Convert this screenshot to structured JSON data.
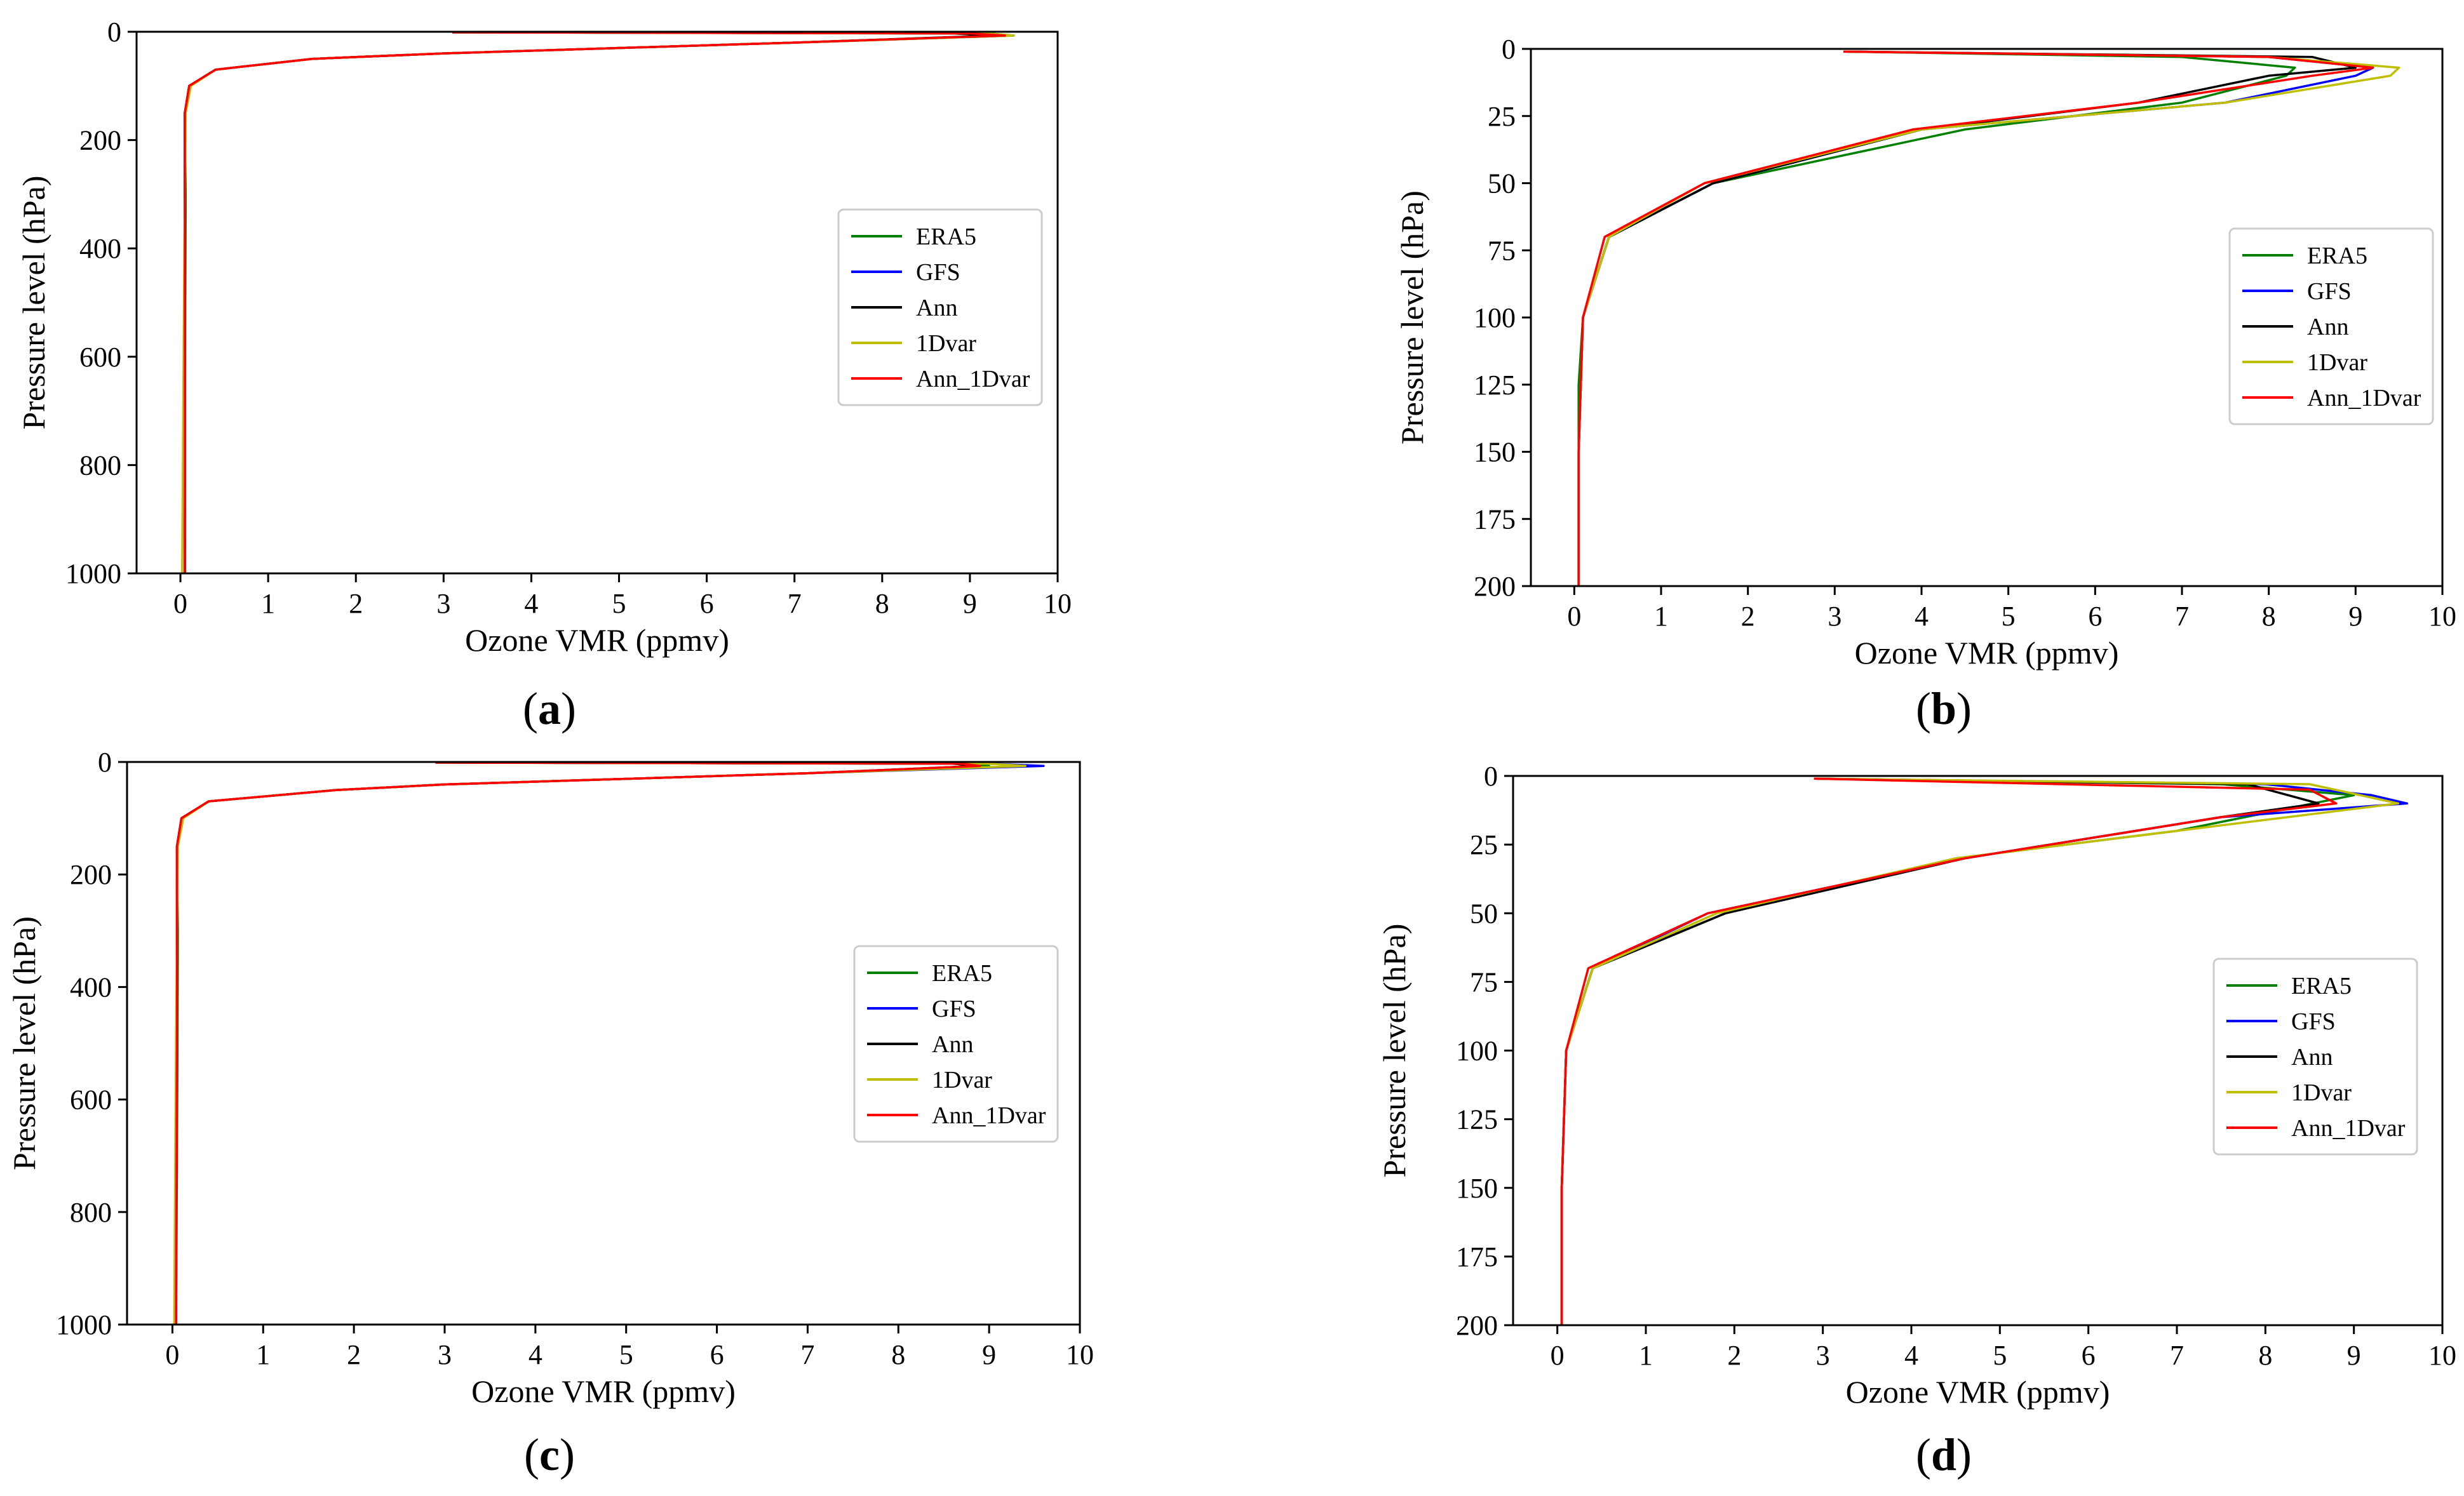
{
  "series_colors": {
    "ERA5": "#008000",
    "GFS": "#0000ff",
    "Ann": "#000000",
    "1Dvar": "#bfbf00",
    "Ann_1Dvar": "#ff0000"
  },
  "chart_data": [
    {
      "type": "line",
      "panel_label": "(a)",
      "xlabel": "Ozone VMR (ppmv)",
      "ylabel": "Pressure level (hPa)",
      "xlim": [
        -0.5,
        10
      ],
      "ylim": [
        1000,
        0
      ],
      "xticks": [
        "0",
        "1",
        "2",
        "3",
        "4",
        "5",
        "6",
        "7",
        "8",
        "9",
        "10"
      ],
      "yticks": [
        "0",
        "200",
        "400",
        "600",
        "800",
        "1000"
      ],
      "legend_position": "center-right",
      "series": [
        {
          "name": "ERA5",
          "x": [
            3.1,
            9.2,
            9.5,
            7.0,
            3.0,
            1.5,
            0.4,
            0.1,
            0.05,
            0.06,
            0.05,
            0.05
          ],
          "y": [
            1,
            3,
            7,
            20,
            40,
            50,
            70,
            100,
            150,
            300,
            700,
            1000
          ]
        },
        {
          "name": "GFS",
          "x": [
            3.1,
            9.1,
            9.4,
            7.0,
            3.0,
            1.5,
            0.4,
            0.1,
            0.05,
            0.05,
            0.05
          ],
          "y": [
            1,
            3,
            7,
            20,
            40,
            50,
            70,
            100,
            150,
            500,
            1000
          ]
        },
        {
          "name": "Ann",
          "x": [
            3.1,
            8.8,
            9.3,
            7.0,
            3.0,
            1.5,
            0.4,
            0.1,
            0.05,
            0.05,
            0.05
          ],
          "y": [
            1,
            3,
            7,
            20,
            40,
            50,
            70,
            100,
            150,
            500,
            1000
          ]
        },
        {
          "name": "1Dvar",
          "x": [
            3.1,
            9.2,
            9.5,
            7.0,
            3.0,
            1.5,
            0.4,
            0.12,
            0.06,
            0.04,
            0.02
          ],
          "y": [
            1,
            3,
            7,
            20,
            40,
            50,
            70,
            100,
            150,
            500,
            1000
          ]
        },
        {
          "name": "Ann_1Dvar",
          "x": [
            3.1,
            9.0,
            9.4,
            7.0,
            3.0,
            1.5,
            0.4,
            0.1,
            0.05,
            0.05,
            0.05
          ],
          "y": [
            1,
            3,
            7,
            20,
            40,
            50,
            70,
            100,
            150,
            500,
            1000
          ]
        }
      ]
    },
    {
      "type": "line",
      "panel_label": "(b)",
      "xlabel": "Ozone VMR (ppmv)",
      "ylabel": "Pressure level (hPa)",
      "xlim": [
        -0.5,
        10
      ],
      "ylim": [
        200,
        0
      ],
      "xticks": [
        "0",
        "1",
        "2",
        "3",
        "4",
        "5",
        "6",
        "7",
        "8",
        "9",
        "10"
      ],
      "yticks": [
        "0",
        "25",
        "50",
        "75",
        "100",
        "125",
        "150",
        "175",
        "200"
      ],
      "legend_position": "center-right",
      "series": [
        {
          "name": "ERA5",
          "x": [
            3.1,
            7.0,
            8.3,
            8.2,
            7.0,
            4.5,
            1.6,
            0.4,
            0.1,
            0.05,
            0.05,
            0.05
          ],
          "y": [
            1,
            3,
            7,
            10,
            20,
            30,
            50,
            70,
            100,
            125,
            150,
            200
          ]
        },
        {
          "name": "GFS",
          "x": [
            3.1,
            8.0,
            9.2,
            9.0,
            7.5,
            4.0,
            1.6,
            0.4,
            0.1,
            0.05,
            0.05
          ],
          "y": [
            1,
            3,
            7,
            10,
            20,
            30,
            50,
            70,
            100,
            150,
            200
          ]
        },
        {
          "name": "Ann",
          "x": [
            3.1,
            8.5,
            9.0,
            8.0,
            6.5,
            4.0,
            1.6,
            0.4,
            0.1,
            0.05,
            0.05
          ],
          "y": [
            1,
            3,
            7,
            10,
            20,
            30,
            50,
            70,
            100,
            150,
            200
          ]
        },
        {
          "name": "1Dvar",
          "x": [
            3.1,
            8.0,
            9.5,
            9.4,
            7.5,
            4.0,
            1.5,
            0.4,
            0.1,
            0.05,
            0.05
          ],
          "y": [
            1,
            3,
            7,
            10,
            20,
            30,
            50,
            70,
            100,
            150,
            200
          ]
        },
        {
          "name": "Ann_1Dvar",
          "x": [
            3.1,
            8.0,
            9.2,
            8.5,
            6.5,
            3.9,
            1.5,
            0.35,
            0.1,
            0.05,
            0.05
          ],
          "y": [
            1,
            3,
            7,
            10,
            20,
            30,
            50,
            70,
            100,
            150,
            200
          ]
        }
      ]
    },
    {
      "type": "line",
      "panel_label": "(c)",
      "xlabel": "Ozone VMR (ppmv)",
      "ylabel": "Pressure level (hPa)",
      "xlim": [
        -0.5,
        10
      ],
      "ylim": [
        1000,
        0
      ],
      "xticks": [
        "0",
        "1",
        "2",
        "3",
        "4",
        "5",
        "6",
        "7",
        "8",
        "9",
        "10"
      ],
      "yticks": [
        "0",
        "200",
        "400",
        "600",
        "800",
        "1000"
      ],
      "legend_position": "center-right",
      "series": [
        {
          "name": "ERA5",
          "x": [
            2.9,
            8.8,
            9.0,
            7.0,
            3.0,
            1.8,
            0.4,
            0.1,
            0.05,
            0.06,
            0.05,
            0.04
          ],
          "y": [
            1,
            3,
            7,
            20,
            40,
            50,
            70,
            100,
            150,
            300,
            700,
            1000
          ]
        },
        {
          "name": "GFS",
          "x": [
            2.9,
            9.0,
            9.6,
            7.0,
            3.0,
            1.8,
            0.4,
            0.1,
            0.05,
            0.05,
            0.04
          ],
          "y": [
            1,
            3,
            7,
            20,
            40,
            50,
            70,
            100,
            150,
            500,
            1000
          ]
        },
        {
          "name": "Ann",
          "x": [
            2.9,
            8.6,
            8.9,
            7.0,
            3.0,
            1.8,
            0.4,
            0.1,
            0.05,
            0.05,
            0.04
          ],
          "y": [
            1,
            3,
            7,
            20,
            40,
            50,
            70,
            100,
            150,
            500,
            1000
          ]
        },
        {
          "name": "1Dvar",
          "x": [
            2.9,
            9.0,
            9.4,
            7.0,
            3.0,
            1.8,
            0.4,
            0.12,
            0.06,
            0.04,
            0.02
          ],
          "y": [
            1,
            3,
            7,
            20,
            40,
            50,
            70,
            100,
            150,
            500,
            1000
          ]
        },
        {
          "name": "Ann_1Dvar",
          "x": [
            2.9,
            8.7,
            8.9,
            7.0,
            3.0,
            1.8,
            0.4,
            0.1,
            0.05,
            0.05,
            0.04
          ],
          "y": [
            1,
            3,
            7,
            20,
            40,
            50,
            70,
            100,
            150,
            500,
            1000
          ]
        }
      ]
    },
    {
      "type": "line",
      "panel_label": "(d)",
      "xlabel": "Ozone VMR (ppmv)",
      "ylabel": "Pressure level (hPa)",
      "xlim": [
        -0.5,
        10
      ],
      "ylim": [
        200,
        0
      ],
      "xticks": [
        "0",
        "1",
        "2",
        "3",
        "4",
        "5",
        "6",
        "7",
        "8",
        "9",
        "10"
      ],
      "yticks": [
        "0",
        "25",
        "50",
        "75",
        "100",
        "125",
        "150",
        "175",
        "200"
      ],
      "legend_position": "center-right",
      "series": [
        {
          "name": "ERA5",
          "x": [
            2.9,
            7.5,
            9.0,
            7.0,
            4.5,
            1.9,
            0.4,
            0.1,
            0.05,
            0.05
          ],
          "y": [
            1,
            3,
            7,
            20,
            30,
            50,
            70,
            100,
            150,
            200
          ]
        },
        {
          "name": "GFS",
          "x": [
            2.9,
            8.0,
            9.2,
            9.6,
            7.5,
            4.6,
            1.7,
            0.4,
            0.1,
            0.05,
            0.05
          ],
          "y": [
            1,
            3,
            7,
            10,
            15,
            30,
            50,
            70,
            100,
            150,
            200
          ]
        },
        {
          "name": "Ann",
          "x": [
            2.9,
            7.8,
            8.6,
            7.5,
            4.6,
            1.9,
            0.4,
            0.1,
            0.05,
            0.05
          ],
          "y": [
            1,
            3,
            10,
            15,
            30,
            50,
            70,
            100,
            150,
            200
          ]
        },
        {
          "name": "1Dvar",
          "x": [
            2.9,
            8.5,
            9.5,
            7.0,
            4.5,
            1.8,
            0.4,
            0.1,
            0.05,
            0.05
          ],
          "y": [
            1,
            3,
            10,
            20,
            30,
            50,
            70,
            100,
            150,
            200
          ]
        },
        {
          "name": "Ann_1Dvar",
          "x": [
            2.9,
            8.5,
            8.8,
            7.5,
            4.6,
            1.7,
            0.35,
            0.1,
            0.05,
            0.05
          ],
          "y": [
            1,
            5,
            10,
            15,
            30,
            50,
            70,
            100,
            150,
            200
          ]
        }
      ]
    }
  ]
}
